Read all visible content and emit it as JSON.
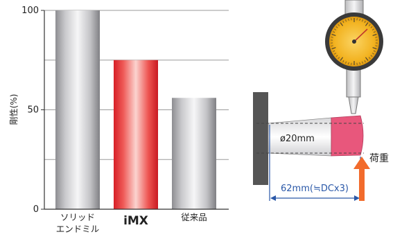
{
  "chart_data": {
    "type": "bar",
    "ylabel": "剛性(%)",
    "ylim": [
      0,
      100
    ],
    "yticks": [
      0,
      50,
      100
    ],
    "grid": true,
    "categories": [
      [
        "ソリッド",
        "エンドミル"
      ],
      [
        "iMX"
      ],
      [
        "従来品"
      ]
    ],
    "values": [
      100,
      75,
      56
    ],
    "bar_styles": [
      "silver",
      "red",
      "silver"
    ],
    "highlight_index": 1
  },
  "diagram": {
    "diameter_label": "ø20mm",
    "length_label": "62mm(≒DCx3)",
    "load_label": "荷重",
    "colors": {
      "head": "#e8577c",
      "dimension": "#2a58a8",
      "arrow": "#f26b2c",
      "gauge_face": "#f2b21f",
      "wall": "#555555"
    }
  }
}
